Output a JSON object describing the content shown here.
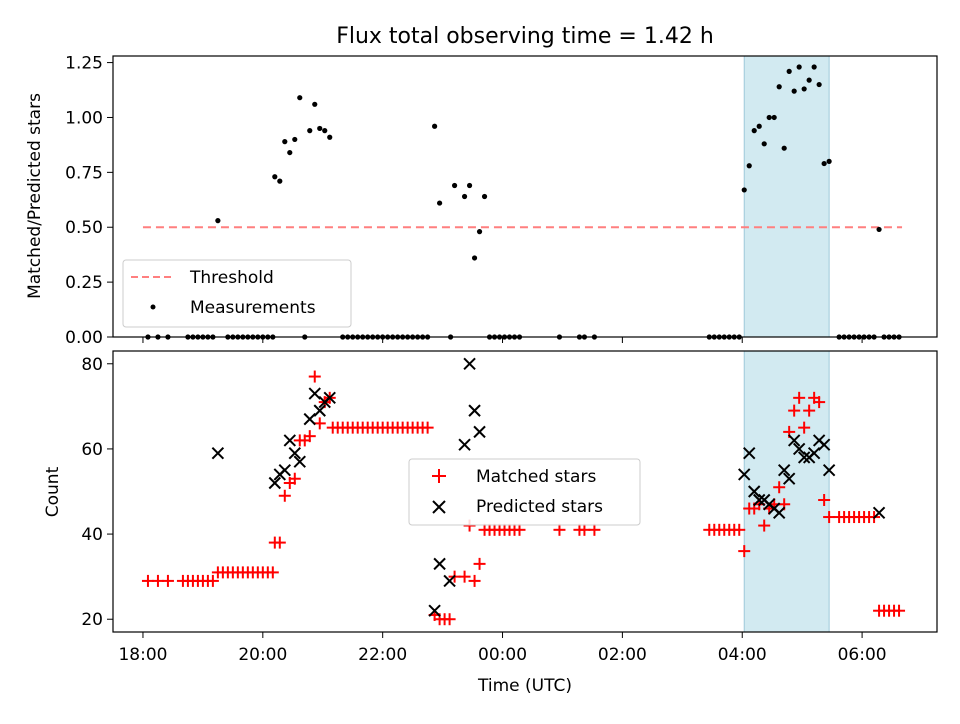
{
  "chart_data": [
    {
      "type": "scatter",
      "title": "Flux total observing time = 1.42 h",
      "xlabel": "",
      "ylabel": "Matched/Predicted stars",
      "xlim": [
        "17:30",
        "07:15"
      ],
      "ylim": [
        0,
        1.28
      ],
      "yticks": [
        "0.00",
        "0.25",
        "0.50",
        "0.75",
        "1.00",
        "1.25"
      ],
      "highlight_span": {
        "start": "04:02",
        "end": "05:27",
        "color": "#add8e6"
      },
      "legend_position": "lower-left",
      "series": [
        {
          "name": "Threshold",
          "style": "dashed-line",
          "color": "#ff7f7f",
          "x": [
            "18:00",
            "06:40"
          ],
          "y": [
            0.5,
            0.5
          ]
        },
        {
          "name": "Measurements",
          "style": "dot",
          "color": "#000000",
          "points": [
            [
              "18:05",
              0
            ],
            [
              "18:15",
              0
            ],
            [
              "18:25",
              0
            ],
            [
              "18:45",
              0
            ],
            [
              "18:50",
              0
            ],
            [
              "18:55",
              0
            ],
            [
              "19:00",
              0
            ],
            [
              "19:05",
              0
            ],
            [
              "19:10",
              0
            ],
            [
              "19:15",
              0.53
            ],
            [
              "19:25",
              0
            ],
            [
              "19:30",
              0
            ],
            [
              "19:35",
              0
            ],
            [
              "19:40",
              0
            ],
            [
              "19:45",
              0
            ],
            [
              "19:50",
              0
            ],
            [
              "19:55",
              0
            ],
            [
              "20:00",
              0
            ],
            [
              "20:05",
              0
            ],
            [
              "20:10",
              0
            ],
            [
              "20:12",
              0.73
            ],
            [
              "20:17",
              0.71
            ],
            [
              "20:22",
              0.89
            ],
            [
              "20:27",
              0.84
            ],
            [
              "20:32",
              0.9
            ],
            [
              "20:37",
              1.09
            ],
            [
              "20:42",
              0
            ],
            [
              "20:47",
              0.94
            ],
            [
              "20:52",
              1.06
            ],
            [
              "20:57",
              0.95
            ],
            [
              "21:02",
              0.94
            ],
            [
              "21:07",
              0.91
            ],
            [
              "21:20",
              0
            ],
            [
              "21:25",
              0
            ],
            [
              "21:30",
              0
            ],
            [
              "21:35",
              0
            ],
            [
              "21:40",
              0
            ],
            [
              "21:45",
              0
            ],
            [
              "21:50",
              0
            ],
            [
              "21:55",
              0
            ],
            [
              "22:00",
              0
            ],
            [
              "22:05",
              0
            ],
            [
              "22:10",
              0
            ],
            [
              "22:15",
              0
            ],
            [
              "22:20",
              0
            ],
            [
              "22:25",
              0
            ],
            [
              "22:30",
              0
            ],
            [
              "22:35",
              0
            ],
            [
              "22:40",
              0
            ],
            [
              "22:45",
              0
            ],
            [
              "22:52",
              0.96
            ],
            [
              "22:57",
              0.61
            ],
            [
              "23:08",
              0
            ],
            [
              "23:12",
              0.69
            ],
            [
              "23:22",
              0.64
            ],
            [
              "23:27",
              0.69
            ],
            [
              "23:32",
              0.36
            ],
            [
              "23:37",
              0.48
            ],
            [
              "23:42",
              0.64
            ],
            [
              "23:47",
              0
            ],
            [
              "23:52",
              0
            ],
            [
              "23:57",
              0
            ],
            [
              "00:02",
              0
            ],
            [
              "00:07",
              0
            ],
            [
              "00:12",
              0
            ],
            [
              "00:17",
              0
            ],
            [
              "00:57",
              0
            ],
            [
              "01:17",
              0
            ],
            [
              "01:22",
              0
            ],
            [
              "01:32",
              0
            ],
            [
              "03:27",
              0
            ],
            [
              "03:32",
              0
            ],
            [
              "03:37",
              0
            ],
            [
              "03:42",
              0
            ],
            [
              "03:47",
              0
            ],
            [
              "03:52",
              0
            ],
            [
              "03:57",
              0
            ],
            [
              "04:02",
              0.67
            ],
            [
              "04:07",
              0.78
            ],
            [
              "04:12",
              0.94
            ],
            [
              "04:17",
              0.96
            ],
            [
              "04:22",
              0.88
            ],
            [
              "04:27",
              1.0
            ],
            [
              "04:32",
              1.0
            ],
            [
              "04:37",
              1.14
            ],
            [
              "04:42",
              0.86
            ],
            [
              "04:47",
              1.21
            ],
            [
              "04:52",
              1.12
            ],
            [
              "04:57",
              1.23
            ],
            [
              "05:02",
              1.13
            ],
            [
              "05:07",
              1.17
            ],
            [
              "05:12",
              1.23
            ],
            [
              "05:17",
              1.15
            ],
            [
              "05:22",
              0.79
            ],
            [
              "05:27",
              0.8
            ],
            [
              "05:37",
              0
            ],
            [
              "05:42",
              0
            ],
            [
              "05:47",
              0
            ],
            [
              "05:52",
              0
            ],
            [
              "05:57",
              0
            ],
            [
              "06:02",
              0
            ],
            [
              "06:07",
              0
            ],
            [
              "06:12",
              0
            ],
            [
              "06:17",
              0.49
            ],
            [
              "06:22",
              0
            ],
            [
              "06:27",
              0
            ],
            [
              "06:32",
              0
            ],
            [
              "06:37",
              0
            ]
          ]
        }
      ]
    },
    {
      "type": "scatter",
      "title": "",
      "xlabel": "Time (UTC)",
      "ylabel": "Count",
      "xlim": [
        "17:30",
        "07:15"
      ],
      "ylim": [
        17,
        83
      ],
      "yticks": [
        "20",
        "40",
        "60",
        "80"
      ],
      "xticks": [
        "18:00",
        "20:00",
        "22:00",
        "00:00",
        "02:00",
        "04:00",
        "06:00"
      ],
      "highlight_span": {
        "start": "04:02",
        "end": "05:27",
        "color": "#add8e6"
      },
      "legend_position": "center",
      "series": [
        {
          "name": "Matched stars",
          "marker": "plus",
          "color": "#ff0000",
          "points": [
            [
              "18:05",
              29
            ],
            [
              "18:15",
              29
            ],
            [
              "18:25",
              29
            ],
            [
              "18:40",
              29
            ],
            [
              "18:45",
              29
            ],
            [
              "18:50",
              29
            ],
            [
              "18:55",
              29
            ],
            [
              "19:00",
              29
            ],
            [
              "19:05",
              29
            ],
            [
              "19:10",
              29
            ],
            [
              "19:15",
              31
            ],
            [
              "19:20",
              31
            ],
            [
              "19:25",
              31
            ],
            [
              "19:30",
              31
            ],
            [
              "19:35",
              31
            ],
            [
              "19:40",
              31
            ],
            [
              "19:45",
              31
            ],
            [
              "19:50",
              31
            ],
            [
              "19:55",
              31
            ],
            [
              "20:00",
              31
            ],
            [
              "20:05",
              31
            ],
            [
              "20:10",
              31
            ],
            [
              "20:12",
              38
            ],
            [
              "20:17",
              38
            ],
            [
              "20:22",
              49
            ],
            [
              "20:27",
              52
            ],
            [
              "20:32",
              53
            ],
            [
              "20:37",
              62
            ],
            [
              "20:42",
              62
            ],
            [
              "20:47",
              63
            ],
            [
              "20:52",
              77
            ],
            [
              "20:57",
              66
            ],
            [
              "21:02",
              71
            ],
            [
              "21:07",
              72
            ],
            [
              "21:10",
              65
            ],
            [
              "21:15",
              65
            ],
            [
              "21:20",
              65
            ],
            [
              "21:25",
              65
            ],
            [
              "21:30",
              65
            ],
            [
              "21:35",
              65
            ],
            [
              "21:40",
              65
            ],
            [
              "21:45",
              65
            ],
            [
              "21:50",
              65
            ],
            [
              "21:55",
              65
            ],
            [
              "22:00",
              65
            ],
            [
              "22:05",
              65
            ],
            [
              "22:10",
              65
            ],
            [
              "22:15",
              65
            ],
            [
              "22:20",
              65
            ],
            [
              "22:25",
              65
            ],
            [
              "22:30",
              65
            ],
            [
              "22:35",
              65
            ],
            [
              "22:40",
              65
            ],
            [
              "22:45",
              65
            ],
            [
              "22:52",
              21
            ],
            [
              "22:57",
              20
            ],
            [
              "23:02",
              20
            ],
            [
              "23:07",
              20
            ],
            [
              "23:12",
              30
            ],
            [
              "23:22",
              30
            ],
            [
              "23:27",
              42
            ],
            [
              "23:32",
              29
            ],
            [
              "23:37",
              33
            ],
            [
              "23:42",
              41
            ],
            [
              "23:47",
              41
            ],
            [
              "23:52",
              41
            ],
            [
              "23:57",
              41
            ],
            [
              "00:02",
              41
            ],
            [
              "00:07",
              41
            ],
            [
              "00:12",
              41
            ],
            [
              "00:17",
              41
            ],
            [
              "00:57",
              41
            ],
            [
              "01:17",
              41
            ],
            [
              "01:22",
              41
            ],
            [
              "01:32",
              41
            ],
            [
              "03:27",
              41
            ],
            [
              "03:32",
              41
            ],
            [
              "03:37",
              41
            ],
            [
              "03:42",
              41
            ],
            [
              "03:47",
              41
            ],
            [
              "03:52",
              41
            ],
            [
              "03:57",
              41
            ],
            [
              "04:02",
              36
            ],
            [
              "04:07",
              46
            ],
            [
              "04:12",
              46
            ],
            [
              "04:17",
              47
            ],
            [
              "04:22",
              42
            ],
            [
              "04:27",
              46
            ],
            [
              "04:32",
              47
            ],
            [
              "04:37",
              51
            ],
            [
              "04:42",
              47
            ],
            [
              "04:47",
              64
            ],
            [
              "04:52",
              69
            ],
            [
              "04:57",
              72
            ],
            [
              "05:02",
              65
            ],
            [
              "05:07",
              69
            ],
            [
              "05:12",
              72
            ],
            [
              "05:17",
              71
            ],
            [
              "05:22",
              48
            ],
            [
              "05:27",
              44
            ],
            [
              "05:37",
              44
            ],
            [
              "05:42",
              44
            ],
            [
              "05:47",
              44
            ],
            [
              "05:52",
              44
            ],
            [
              "05:57",
              44
            ],
            [
              "06:02",
              44
            ],
            [
              "06:07",
              44
            ],
            [
              "06:12",
              44
            ],
            [
              "06:17",
              22
            ],
            [
              "06:22",
              22
            ],
            [
              "06:27",
              22
            ],
            [
              "06:32",
              22
            ],
            [
              "06:37",
              22
            ]
          ]
        },
        {
          "name": "Predicted stars",
          "marker": "x",
          "color": "#000000",
          "points": [
            [
              "19:15",
              59
            ],
            [
              "20:12",
              52
            ],
            [
              "20:17",
              54
            ],
            [
              "20:22",
              55
            ],
            [
              "20:27",
              62
            ],
            [
              "20:32",
              59
            ],
            [
              "20:37",
              57
            ],
            [
              "20:47",
              67
            ],
            [
              "20:52",
              73
            ],
            [
              "20:57",
              69
            ],
            [
              "21:02",
              71
            ],
            [
              "21:07",
              72
            ],
            [
              "22:52",
              22
            ],
            [
              "22:57",
              33
            ],
            [
              "23:07",
              29
            ],
            [
              "23:22",
              61
            ],
            [
              "23:27",
              80
            ],
            [
              "23:32",
              69
            ],
            [
              "23:37",
              64
            ],
            [
              "04:02",
              54
            ],
            [
              "04:07",
              59
            ],
            [
              "04:12",
              50
            ],
            [
              "04:17",
              48
            ],
            [
              "04:22",
              48
            ],
            [
              "04:27",
              47
            ],
            [
              "04:32",
              46
            ],
            [
              "04:37",
              45
            ],
            [
              "04:42",
              55
            ],
            [
              "04:47",
              53
            ],
            [
              "04:52",
              62
            ],
            [
              "04:57",
              60
            ],
            [
              "05:02",
              58
            ],
            [
              "05:07",
              58
            ],
            [
              "05:12",
              59
            ],
            [
              "05:17",
              62
            ],
            [
              "05:22",
              61
            ],
            [
              "05:27",
              55
            ],
            [
              "06:17",
              45
            ]
          ]
        }
      ]
    }
  ]
}
